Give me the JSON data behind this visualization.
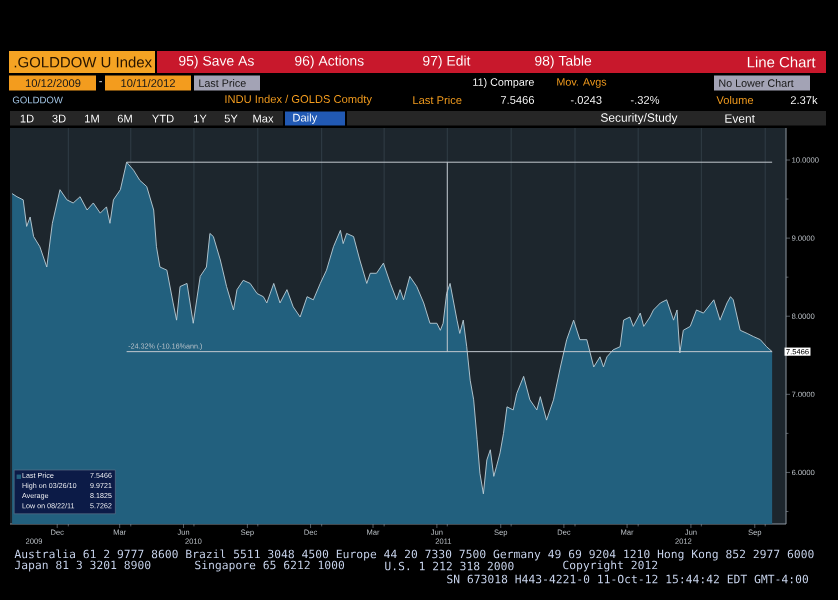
{
  "chart_data": {
    "type": "area",
    "title": ".GOLDDOW U Index",
    "subtitle": "INDU Index / GOLDS Comdty",
    "x": [
      "2009-10-12",
      "2009-10-19",
      "2009-10-28",
      "2009-11-02",
      "2009-11-07",
      "2009-11-12",
      "2009-11-21",
      "2009-12-01",
      "2009-12-09",
      "2009-12-20",
      "2009-12-30",
      "2010-01-08",
      "2010-01-18",
      "2010-01-28",
      "2010-02-06",
      "2010-02-16",
      "2010-02-25",
      "2010-03-02",
      "2010-03-07",
      "2010-03-17",
      "2010-03-26",
      "2010-04-05",
      "2010-04-14",
      "2010-04-24",
      "2010-05-04",
      "2010-05-08",
      "2010-05-13",
      "2010-05-23",
      "2010-06-01",
      "2010-06-06",
      "2010-06-11",
      "2010-06-21",
      "2010-06-30",
      "2010-07-10",
      "2010-07-19",
      "2010-07-24",
      "2010-07-29",
      "2010-08-08",
      "2010-08-17",
      "2010-08-27",
      "2010-09-01",
      "2010-09-10",
      "2010-09-20",
      "2010-09-30",
      "2010-10-09",
      "2010-10-14",
      "2010-10-24",
      "2010-11-02",
      "2010-11-12",
      "2010-11-21",
      "2010-12-01",
      "2010-12-11",
      "2010-12-20",
      "2010-12-30",
      "2011-01-08",
      "2011-01-18",
      "2011-01-28",
      "2011-02-01",
      "2011-02-06",
      "2011-02-16",
      "2011-02-25",
      "2011-03-07",
      "2011-03-12",
      "2011-03-21",
      "2011-03-31",
      "2011-04-10",
      "2011-04-19",
      "2011-04-24",
      "2011-04-29",
      "2011-05-08",
      "2011-05-18",
      "2011-05-28",
      "2011-06-06",
      "2011-06-16",
      "2011-06-21",
      "2011-06-25",
      "2011-06-30",
      "2011-07-05",
      "2011-07-15",
      "2011-07-19",
      "2011-07-24",
      "2011-07-29",
      "2011-08-03",
      "2011-08-08",
      "2011-08-13",
      "2011-08-17",
      "2011-08-22",
      "2011-08-27",
      "2011-09-01",
      "2011-09-06",
      "2011-09-10",
      "2011-09-15",
      "2011-09-20",
      "2011-09-25",
      "2011-10-04",
      "2011-10-09",
      "2011-10-19",
      "2011-10-28",
      "2011-11-07",
      "2011-11-12",
      "2011-11-21",
      "2011-12-01",
      "2011-12-11",
      "2011-12-20",
      "2011-12-30",
      "2012-01-08",
      "2012-01-18",
      "2012-01-28",
      "2012-02-06",
      "2012-02-11",
      "2012-02-16",
      "2012-02-25",
      "2012-03-06",
      "2012-03-11",
      "2012-03-20",
      "2012-03-25",
      "2012-04-04",
      "2012-04-09",
      "2012-04-18",
      "2012-04-23",
      "2012-05-03",
      "2012-05-12",
      "2012-05-22",
      "2012-05-27",
      "2012-05-31",
      "2012-06-05",
      "2012-06-15",
      "2012-06-24",
      "2012-07-04",
      "2012-07-19",
      "2012-07-28",
      "2012-08-07",
      "2012-08-12",
      "2012-08-16",
      "2012-08-26",
      "2012-09-05",
      "2012-09-14",
      "2012-09-24",
      "2012-10-03",
      "2012-10-11"
    ],
    "series": [
      {
        "name": "Last Price",
        "color": "#22607e",
        "values": [
          9.57,
          9.53,
          9.49,
          9.15,
          9.27,
          9.02,
          8.89,
          8.63,
          9.19,
          9.62,
          9.49,
          9.45,
          9.53,
          9.36,
          9.45,
          9.32,
          9.4,
          9.19,
          9.49,
          9.62,
          9.9721,
          9.87,
          9.74,
          9.66,
          9.36,
          8.89,
          8.63,
          8.59,
          8.17,
          7.95,
          8.38,
          8.42,
          7.91,
          8.51,
          8.63,
          9.06,
          9.02,
          8.72,
          8.38,
          8.08,
          8.34,
          8.46,
          8.42,
          8.29,
          8.25,
          8.17,
          8.42,
          8.17,
          8.34,
          8.12,
          7.99,
          8.25,
          8.21,
          8.42,
          8.59,
          8.89,
          9.1,
          8.93,
          9.06,
          9.02,
          8.72,
          8.42,
          8.55,
          8.55,
          8.68,
          8.42,
          8.21,
          8.34,
          8.21,
          8.51,
          8.38,
          8.17,
          7.91,
          7.91,
          7.82,
          7.91,
          8.29,
          8.42,
          7.95,
          7.78,
          7.95,
          7.61,
          7.18,
          6.93,
          6.42,
          5.99,
          5.7262,
          6.16,
          6.29,
          5.95,
          6.08,
          6.25,
          6.5,
          6.84,
          6.8,
          7.01,
          7.23,
          6.93,
          6.8,
          6.97,
          6.67,
          6.93,
          7.35,
          7.7,
          7.95,
          7.7,
          7.7,
          7.35,
          7.48,
          7.35,
          7.48,
          7.57,
          7.61,
          7.95,
          7.99,
          7.87,
          8.04,
          7.87,
          7.99,
          8.08,
          8.17,
          8.21,
          7.95,
          8.08,
          7.53,
          7.82,
          7.87,
          8.08,
          8.04,
          8.21,
          7.95,
          8.17,
          8.25,
          8.21,
          7.82,
          7.78,
          7.74,
          7.7,
          7.61,
          7.5466
        ],
        "value_labels": [
          null,
          null,
          null,
          null,
          null,
          null,
          null,
          null,
          null,
          null,
          null,
          null,
          null,
          null,
          null,
          null,
          null,
          null,
          null,
          null,
          null,
          null,
          null,
          null,
          null,
          null,
          null,
          null,
          null,
          null,
          null,
          null,
          null,
          null,
          null,
          null,
          null,
          null,
          null,
          null,
          null,
          null,
          null,
          null,
          null,
          null,
          null,
          null,
          null,
          null,
          null,
          null,
          null,
          null,
          null,
          null,
          null,
          null,
          null,
          null,
          null,
          null,
          null,
          null,
          null,
          null,
          null,
          null,
          null,
          null,
          null,
          null,
          null,
          null,
          null,
          null,
          null,
          null,
          null,
          null,
          null,
          null,
          null,
          null,
          null,
          null,
          null,
          null,
          null,
          null,
          null,
          null,
          null,
          null,
          null,
          null,
          null,
          null,
          null,
          null,
          null,
          null,
          null,
          null,
          null,
          null,
          null,
          null,
          null,
          null,
          null,
          null,
          null,
          null,
          null,
          null,
          null,
          null,
          null,
          null,
          null,
          null,
          null,
          null,
          null,
          null,
          null,
          null,
          null,
          null,
          null,
          null,
          null,
          null,
          null,
          null,
          null,
          null,
          null,
          "7.5466"
        ]
      },
      {
        "type": "line",
        "color": "#c3c9cf",
        "x": [
          "2010-03-26",
          "2012-10-11"
        ],
        "values": [
          9.9721,
          9.9721
        ]
      },
      {
        "type": "line",
        "color": "#c3c9cf",
        "x": [
          "2010-03-26",
          "2012-10-11"
        ],
        "values": [
          7.5466,
          7.5466
        ]
      },
      {
        "type": "line",
        "color": "#c3c9cf",
        "x": [
          "2011-07-01",
          "2011-07-01"
        ],
        "values": [
          9.9721,
          7.5466
        ]
      }
    ],
    "xlim": [
      "2009-10-09",
      "2012-10-31"
    ],
    "ylim": [
      5.34,
      10.41
    ],
    "xticks": [
      {
        "value": "2009-12-16",
        "label": "Dec"
      },
      {
        "value": "2010-01-01",
        "label": null
      },
      {
        "value": "2010-03-16",
        "label": "Mar"
      },
      {
        "value": "2010-04-01",
        "label": null
      },
      {
        "value": "2010-06-16",
        "label": "Jun"
      },
      {
        "value": "2010-07-01",
        "label": null
      },
      {
        "value": "2010-09-16",
        "label": "Sep"
      },
      {
        "value": "2010-10-01",
        "label": null
      },
      {
        "value": "2010-12-16",
        "label": "Dec"
      },
      {
        "value": "2011-01-01",
        "label": null
      },
      {
        "value": "2011-03-16",
        "label": "Mar"
      },
      {
        "value": "2011-04-01",
        "label": null
      },
      {
        "value": "2011-06-16",
        "label": "Jun"
      },
      {
        "value": "2011-07-01",
        "label": null
      },
      {
        "value": "2011-09-16",
        "label": "Sep"
      },
      {
        "value": "2011-10-01",
        "label": null
      },
      {
        "value": "2011-12-16",
        "label": "Dec"
      },
      {
        "value": "2012-01-01",
        "label": null
      },
      {
        "value": "2012-03-16",
        "label": "Mar"
      },
      {
        "value": "2012-04-01",
        "label": null
      },
      {
        "value": "2012-06-16",
        "label": "Jun"
      },
      {
        "value": "2012-07-01",
        "label": null
      },
      {
        "value": "2012-09-16",
        "label": "Sep"
      },
      {
        "value": "2012-10-01",
        "label": null
      }
    ],
    "yticks": [
      {
        "value": 5.5,
        "label": null
      },
      {
        "value": 6,
        "label": "6.0000"
      },
      {
        "value": 6.5,
        "label": null
      },
      {
        "value": 7,
        "label": "7.0000"
      },
      {
        "value": 7.5,
        "label": null
      },
      {
        "value": 8,
        "label": "8.0000"
      },
      {
        "value": 8.5,
        "label": null
      },
      {
        "value": 9,
        "label": "9.0000"
      },
      {
        "value": 9.5,
        "label": null
      },
      {
        "value": 10,
        "label": "10.0000"
      }
    ],
    "grid": "x",
    "legend": "bottom left",
    "annotations": [
      "95) Save As",
      "96) Actions",
      "97) Edit",
      "98) Table",
      "Line Chart",
      "10/12/2009",
      "-",
      "10/11/2012",
      "Last Price",
      "11) Compare",
      "Mov. Avgs",
      "No Lower Chart",
      "GOLDDOW",
      "Last Price",
      "7.5466",
      "-.0243",
      "-.32%",
      "Volume",
      "2.37k",
      "1D",
      "3D",
      "1M",
      "6M",
      "YTD",
      "1Y",
      "5Y",
      "Max",
      "Daily",
      "Security/Study",
      "Event",
      "High on 03/26/10",
      "9.9721",
      "Average",
      "8.1825",
      "Low on 08/22/11",
      "5.7262",
      {
        "text": "-24.32% (-10.16%ann.)",
        "x": "2010-03-26",
        "y": 7.5466
      },
      "2009",
      "2010",
      "2011",
      "2012",
      "Australia 61 2 9777 8600 Brazil 5511 3048 4500 Europe 44 20 7330 7500 Germany 49 69 9204 1210 Hong Kong 852 2977 6000",
      "Japan 81 3 3201 8900",
      "Singapore 65 6212 1000",
      "U.S. 1 212 318 2000",
      "Copyright 2012",
      "SN 673018 H443-4221-0 11-Oct-12 15:44:42 EDT GMT-4:00"
    ]
  }
}
